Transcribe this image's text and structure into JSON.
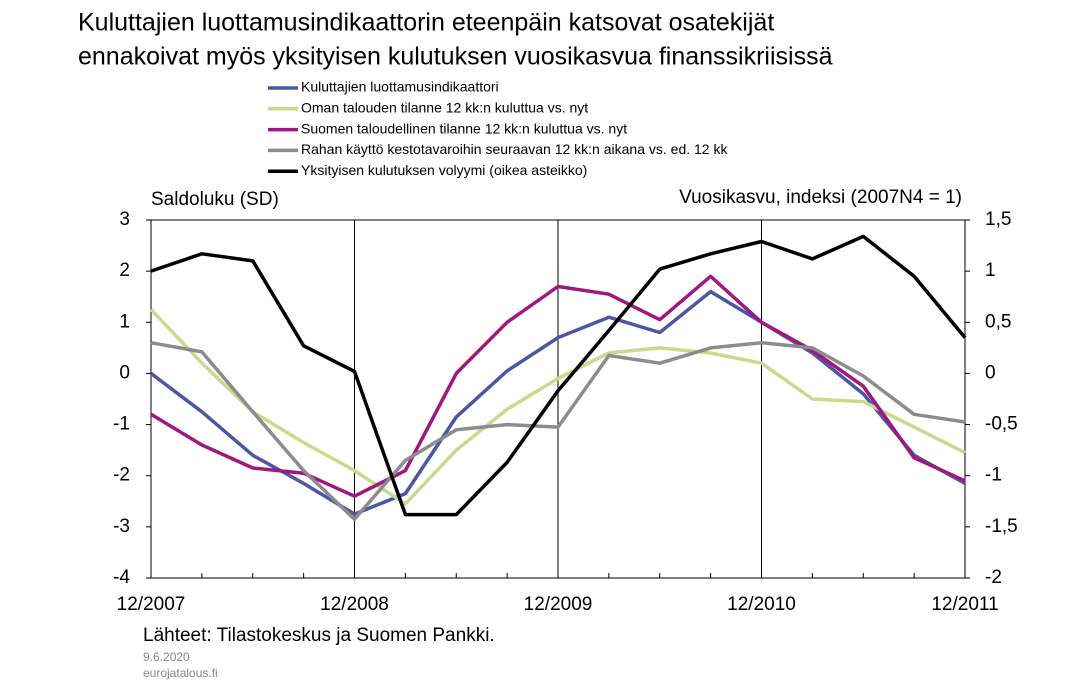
{
  "chart_data": {
    "type": "line",
    "title": [
      "Kuluttajien luottamusindikaattorin eteenpäin katsovat osatekijät",
      "ennakoivat myös yksityisen kulutuksen vuosikasvua finanssikriisissä"
    ],
    "ylabel": "Saldoluku  (SD)",
    "y2label": "Vuosikasvu,  indeksi  (2007N4 = 1)",
    "source": "Lähteet:  Tilastokeskus  ja  Suomen  Pankki.",
    "date": "9.6.2020",
    "site": "eurojatalous.fi",
    "categories": [
      "12/2007",
      null,
      null,
      null,
      "12/2008",
      null,
      null,
      null,
      "12/2009",
      null,
      null,
      null,
      "12/2010",
      null,
      null,
      null,
      "12/2011"
    ],
    "ylim": [
      -4,
      3
    ],
    "yticks": [
      3,
      2,
      1,
      0,
      -1,
      -2,
      -3,
      -4
    ],
    "y2lim": [
      -2,
      1.5
    ],
    "y2ticks": [
      {
        "value": 1.5,
        "label": "1,5"
      },
      1,
      {
        "value": 0.5,
        "label": "0,5"
      },
      0,
      {
        "value": -0.5,
        "label": "-0,5"
      },
      -1,
      {
        "value": -1.5,
        "label": "-1,5"
      },
      -2
    ],
    "series": [
      {
        "name": "Kuluttajien luottamusindikaattori",
        "color": "#4c56a4",
        "values": [
          0,
          -0.75,
          -1.6,
          -2.15,
          -2.75,
          -2.35,
          -0.85,
          0.05,
          0.7,
          1.1,
          0.8,
          1.6,
          1.0,
          0.4,
          -0.4,
          -1.6,
          -2.15
        ]
      },
      {
        "name": "Oman talouden tilanne 12 kk:n kuluttua vs. nyt",
        "color": "#c8da8c",
        "values": [
          1.25,
          0.2,
          -0.75,
          -1.35,
          -1.9,
          -2.55,
          -1.5,
          -0.7,
          -0.1,
          0.4,
          0.5,
          0.4,
          0.2,
          -0.5,
          -0.55,
          -1.05,
          -1.55
        ]
      },
      {
        "name": "Suomen taloudellinen tilanne 12 kk:n kuluttua vs. nyt",
        "color": "#a0187f",
        "values": [
          -0.8,
          -1.4,
          -1.85,
          -1.95,
          -2.4,
          -1.9,
          0,
          1.0,
          1.7,
          1.55,
          1.05,
          1.9,
          1.0,
          0.45,
          -0.25,
          -1.65,
          -2.1
        ]
      },
      {
        "name": "Rahan käyttö kestotavaroihin seuraavan 12 kk:n aikana vs. ed. 12 kk",
        "color": "#8c8c8c",
        "values": [
          0.6,
          0.42,
          -0.75,
          -1.9,
          -2.85,
          -1.7,
          -1.1,
          -1.0,
          -1.05,
          0.35,
          0.2,
          0.5,
          0.6,
          0.5,
          -0.05,
          -0.8,
          -0.95
        ]
      },
      {
        "name": "Yksityisen kulutuksen volyymi (oikea asteikko)",
        "color": "#000000",
        "axis": "y2",
        "values": [
          1.0,
          1.17,
          1.1,
          0.27,
          0.02,
          -1.38,
          -1.38,
          -0.87,
          -0.17,
          0.42,
          1.02,
          1.17,
          1.29,
          1.12,
          1.34,
          0.95,
          0.35
        ]
      }
    ]
  }
}
